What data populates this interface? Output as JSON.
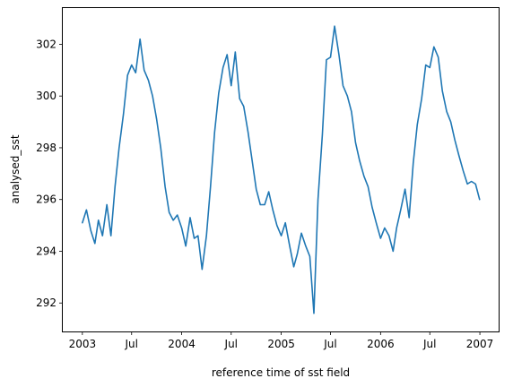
{
  "chart_data": {
    "type": "line",
    "title": "",
    "xlabel": "reference time of sst field",
    "ylabel": "analysed_sst",
    "xlim": [
      "2002-10-21",
      "2007-03-11"
    ],
    "ylim": [
      290.9,
      303.4
    ],
    "grid": false,
    "x_ticks": [
      {
        "date": "2003-01-01",
        "label": "2003"
      },
      {
        "date": "2003-07-01",
        "label": "Jul"
      },
      {
        "date": "2004-01-01",
        "label": "2004"
      },
      {
        "date": "2004-07-01",
        "label": "Jul"
      },
      {
        "date": "2005-01-01",
        "label": "2005"
      },
      {
        "date": "2005-07-01",
        "label": "Jul"
      },
      {
        "date": "2006-01-01",
        "label": "2006"
      },
      {
        "date": "2006-07-01",
        "label": "Jul"
      },
      {
        "date": "2007-01-01",
        "label": "2007"
      }
    ],
    "y_ticks": [
      {
        "value": 292,
        "label": "292"
      },
      {
        "value": 294,
        "label": "294"
      },
      {
        "value": 296,
        "label": "296"
      },
      {
        "value": 298,
        "label": "298"
      },
      {
        "value": 300,
        "label": "300"
      },
      {
        "value": 302,
        "label": "302"
      }
    ],
    "series": [
      {
        "color": "#1f77b4",
        "x": [
          "2003-01-01",
          "2003-01-16",
          "2003-02-01",
          "2003-02-16",
          "2003-03-01",
          "2003-03-16",
          "2003-04-01",
          "2003-04-16",
          "2003-05-01",
          "2003-05-16",
          "2003-06-01",
          "2003-06-16",
          "2003-07-01",
          "2003-07-16",
          "2003-08-01",
          "2003-08-16",
          "2003-09-01",
          "2003-09-16",
          "2003-10-01",
          "2003-10-16",
          "2003-11-01",
          "2003-11-16",
          "2003-12-01",
          "2003-12-16",
          "2004-01-01",
          "2004-01-16",
          "2004-02-01",
          "2004-02-16",
          "2004-03-01",
          "2004-03-16",
          "2004-04-01",
          "2004-04-16",
          "2004-05-01",
          "2004-05-16",
          "2004-06-01",
          "2004-06-16",
          "2004-07-01",
          "2004-07-16",
          "2004-08-01",
          "2004-08-16",
          "2004-09-01",
          "2004-09-16",
          "2004-10-01",
          "2004-10-16",
          "2004-11-01",
          "2004-11-16",
          "2004-12-01",
          "2004-12-16",
          "2005-01-01",
          "2005-01-16",
          "2005-02-01",
          "2005-02-16",
          "2005-03-01",
          "2005-03-16",
          "2005-04-01",
          "2005-04-16",
          "2005-05-01",
          "2005-05-16",
          "2005-06-01",
          "2005-06-16",
          "2005-07-01",
          "2005-07-16",
          "2005-08-01",
          "2005-08-16",
          "2005-09-01",
          "2005-09-16",
          "2005-10-01",
          "2005-10-16",
          "2005-11-01",
          "2005-11-16",
          "2005-12-01",
          "2005-12-16",
          "2006-01-01",
          "2006-01-16",
          "2006-02-01",
          "2006-02-16",
          "2006-03-01",
          "2006-03-16",
          "2006-04-01",
          "2006-04-16",
          "2006-05-01",
          "2006-05-16",
          "2006-06-01",
          "2006-06-16",
          "2006-07-01",
          "2006-07-16",
          "2006-08-01",
          "2006-08-16",
          "2006-09-01",
          "2006-09-16",
          "2006-10-01",
          "2006-10-16",
          "2006-11-01",
          "2006-11-16",
          "2006-12-01",
          "2006-12-16",
          "2006-12-31"
        ],
        "y": [
          295.1,
          295.6,
          294.8,
          294.3,
          295.2,
          294.6,
          295.8,
          294.6,
          296.5,
          298.0,
          299.3,
          300.8,
          301.2,
          300.9,
          302.2,
          301.0,
          300.6,
          300.0,
          299.1,
          298.0,
          296.5,
          295.5,
          295.2,
          295.4,
          294.9,
          294.2,
          295.3,
          294.5,
          294.6,
          293.3,
          294.6,
          296.5,
          298.6,
          300.1,
          301.1,
          301.6,
          300.4,
          301.7,
          299.9,
          299.6,
          298.6,
          297.5,
          296.4,
          295.8,
          295.8,
          296.3,
          295.6,
          295.0,
          294.6,
          295.1,
          294.2,
          293.4,
          293.9,
          294.7,
          294.2,
          293.8,
          291.6,
          296.0,
          298.5,
          301.4,
          301.5,
          302.7,
          301.6,
          300.4,
          300.0,
          299.4,
          298.2,
          297.5,
          296.9,
          296.5,
          295.7,
          295.1,
          294.5,
          294.9,
          294.6,
          294.0,
          294.9,
          295.6,
          296.4,
          295.3,
          297.4,
          298.9,
          299.9,
          301.2,
          301.1,
          301.9,
          301.5,
          300.2,
          299.4,
          299.0,
          298.3,
          297.7,
          297.1,
          296.6,
          296.7,
          296.6,
          296.0
        ]
      }
    ]
  }
}
